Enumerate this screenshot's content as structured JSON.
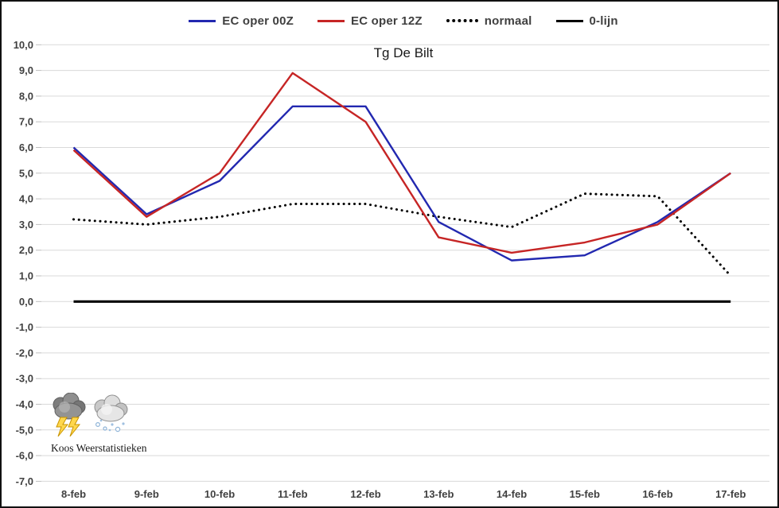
{
  "window": {
    "background": "#ffffff",
    "border_color": "#111111"
  },
  "legend": {
    "items": [
      {
        "label": "EC oper 00Z",
        "color": "#2228b0",
        "style": "solid"
      },
      {
        "label": "EC oper 12Z",
        "color": "#c62525",
        "style": "solid"
      },
      {
        "label": "normaal",
        "color": "#000000",
        "style": "dotted"
      },
      {
        "label": "0-lijn",
        "color": "#000000",
        "style": "solid"
      }
    ]
  },
  "branding": {
    "label": "Koos Weerstatistieken",
    "icons": [
      "storm-cloud-lightning-icon",
      "snow-cloud-icon"
    ]
  },
  "chart_data": {
    "type": "line",
    "title": "Tg De Bilt",
    "categories": [
      "8-feb",
      "9-feb",
      "10-feb",
      "11-feb",
      "12-feb",
      "13-feb",
      "14-feb",
      "15-feb",
      "16-feb",
      "17-feb"
    ],
    "series": [
      {
        "name": "EC oper 00Z",
        "color": "#2228b0",
        "style": "solid",
        "values": [
          6.0,
          3.4,
          4.7,
          7.6,
          7.6,
          3.1,
          1.6,
          1.8,
          3.1,
          5.0
        ]
      },
      {
        "name": "EC oper 12Z",
        "color": "#c62525",
        "style": "solid",
        "values": [
          5.9,
          3.3,
          5.0,
          8.9,
          7.0,
          2.5,
          1.9,
          2.3,
          3.0,
          5.0
        ]
      },
      {
        "name": "normaal",
        "color": "#000000",
        "style": "dotted",
        "values": [
          3.2,
          3.0,
          3.3,
          3.8,
          3.8,
          3.3,
          2.9,
          4.2,
          4.1,
          1.0
        ]
      },
      {
        "name": "0-lijn",
        "color": "#000000",
        "style": "solid-thick",
        "values": [
          0,
          0,
          0,
          0,
          0,
          0,
          0,
          0,
          0,
          0
        ]
      }
    ],
    "xlabel": "",
    "ylabel": "",
    "ylim": [
      -7,
      10
    ],
    "ytick_step": 1,
    "ytick_labels": [
      "10,0",
      "9,0",
      "8,0",
      "7,0",
      "6,0",
      "5,0",
      "4,0",
      "3,0",
      "2,0",
      "1,0",
      "0,0",
      "-1,0",
      "-2,0",
      "-3,0",
      "-4,0",
      "-5,0",
      "-6,0",
      "-7,0"
    ],
    "grid": "horizontal",
    "gridline_color": "#d9d9d9",
    "tick_color": "#bfbfbf",
    "axis_label_color": "#404040",
    "legend_position": "top"
  }
}
